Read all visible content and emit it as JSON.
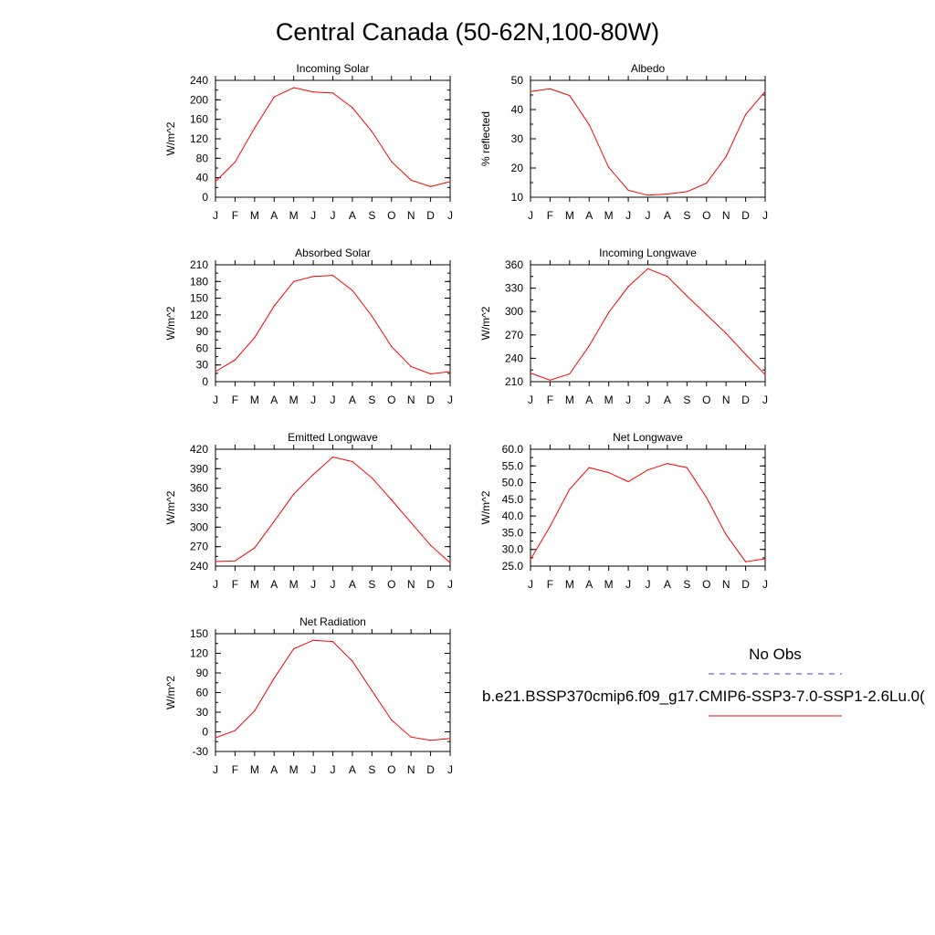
{
  "page": {
    "title": "Central Canada (50-62N,100-80W)"
  },
  "legend": {
    "obs_label": "No Obs",
    "model_label": "b.e21.BSSP370cmip6.f09_g17.CMIP6-SSP3-7.0-SSP1-2.6Lu.0(",
    "obs_color": "#3b3bff",
    "model_color": "#ff0000"
  },
  "chart_data": [
    {
      "type": "line",
      "title": "Incoming Solar",
      "ylabel": "W/m^2",
      "categories": [
        "J",
        "F",
        "M",
        "A",
        "M",
        "J",
        "J",
        "A",
        "S",
        "O",
        "N",
        "D",
        "J"
      ],
      "ylim": [
        0,
        240
      ],
      "yticks": [
        "0",
        "40",
        "80",
        "120",
        "160",
        "200",
        "240"
      ],
      "ytick_values": [
        0,
        40,
        80,
        120,
        160,
        200,
        240
      ],
      "yminor": 20,
      "values": [
        32,
        72,
        142,
        206,
        225,
        216,
        214,
        184,
        135,
        73,
        35,
        22,
        32
      ],
      "color": "#ff0000"
    },
    {
      "type": "line",
      "title": "Albedo",
      "ylabel": "% reflected",
      "categories": [
        "J",
        "F",
        "M",
        "A",
        "M",
        "J",
        "J",
        "A",
        "S",
        "O",
        "N",
        "D",
        "J"
      ],
      "ylim": [
        10,
        50
      ],
      "yticks": [
        "10",
        "20",
        "30",
        "40",
        "50"
      ],
      "ytick_values": [
        10,
        20,
        30,
        40,
        50
      ],
      "yminor": 5,
      "values": [
        46.2,
        47.1,
        44.8,
        34.8,
        20.2,
        12.4,
        10.7,
        11.1,
        11.9,
        14.8,
        23.9,
        38.3,
        46.2
      ],
      "color": "#ff0000"
    },
    {
      "type": "line",
      "title": "Absorbed Solar",
      "ylabel": "W/m^2",
      "categories": [
        "J",
        "F",
        "M",
        "A",
        "M",
        "J",
        "J",
        "A",
        "S",
        "O",
        "N",
        "D",
        "J"
      ],
      "ylim": [
        0,
        210
      ],
      "yticks": [
        "0",
        "30",
        "60",
        "90",
        "120",
        "150",
        "180",
        "210"
      ],
      "ytick_values": [
        0,
        30,
        60,
        90,
        120,
        150,
        180,
        210
      ],
      "yminor": 15,
      "values": [
        18,
        39,
        79,
        136,
        180,
        189,
        191,
        164,
        118,
        63,
        27,
        14,
        18
      ],
      "color": "#ff0000"
    },
    {
      "type": "line",
      "title": "Incoming Longwave",
      "ylabel": "W/m^2",
      "categories": [
        "J",
        "F",
        "M",
        "A",
        "M",
        "J",
        "J",
        "A",
        "S",
        "O",
        "N",
        "D",
        "J"
      ],
      "ylim": [
        210,
        360
      ],
      "yticks": [
        "210",
        "240",
        "270",
        "300",
        "330",
        "360"
      ],
      "ytick_values": [
        210,
        240,
        270,
        300,
        330,
        360
      ],
      "yminor": 15,
      "values": [
        221,
        212,
        220,
        256,
        299,
        332,
        355,
        345,
        320,
        296,
        272,
        245,
        219
      ],
      "color": "#ff0000"
    },
    {
      "type": "line",
      "title": "Emitted Longwave",
      "ylabel": "W/m^2",
      "categories": [
        "J",
        "F",
        "M",
        "A",
        "M",
        "J",
        "J",
        "A",
        "S",
        "O",
        "N",
        "D",
        "J"
      ],
      "ylim": [
        240,
        420
      ],
      "yticks": [
        "240",
        "270",
        "300",
        "330",
        "360",
        "390",
        "420"
      ],
      "ytick_values": [
        240,
        270,
        300,
        330,
        360,
        390,
        420
      ],
      "yminor": 15,
      "values": [
        247,
        248,
        268,
        309,
        351,
        381,
        408,
        401,
        376,
        342,
        307,
        272,
        245
      ],
      "color": "#ff0000"
    },
    {
      "type": "line",
      "title": "Net Longwave",
      "ylabel": "W/m^2",
      "categories": [
        "J",
        "F",
        "M",
        "A",
        "M",
        "J",
        "J",
        "A",
        "S",
        "O",
        "N",
        "D",
        "J"
      ],
      "ylim": [
        25,
        60
      ],
      "yticks": [
        "25.0",
        "30.0",
        "35.0",
        "40.0",
        "45.0",
        "50.0",
        "55.0",
        "60.0"
      ],
      "ytick_values": [
        25,
        30,
        35,
        40,
        45,
        50,
        55,
        60
      ],
      "yminor": 2.5,
      "values": [
        27.0,
        36.9,
        48.0,
        54.5,
        53.0,
        50.3,
        53.8,
        55.7,
        54.5,
        45.5,
        34.4,
        26.3,
        27.2
      ],
      "color": "#ff0000"
    },
    {
      "type": "line",
      "title": "Net Radiation",
      "ylabel": "W/m^2",
      "categories": [
        "J",
        "F",
        "M",
        "A",
        "M",
        "J",
        "J",
        "A",
        "S",
        "O",
        "N",
        "D",
        "J"
      ],
      "ylim": [
        -30,
        150
      ],
      "yticks": [
        "-30",
        "0",
        "30",
        "60",
        "90",
        "120",
        "150"
      ],
      "ytick_values": [
        -30,
        0,
        30,
        60,
        90,
        120,
        150
      ],
      "yminor": 15,
      "values": [
        -9,
        2,
        32,
        82,
        127,
        140,
        138,
        108,
        63,
        18,
        -8,
        -13,
        -10
      ],
      "color": "#ff0000"
    }
  ]
}
